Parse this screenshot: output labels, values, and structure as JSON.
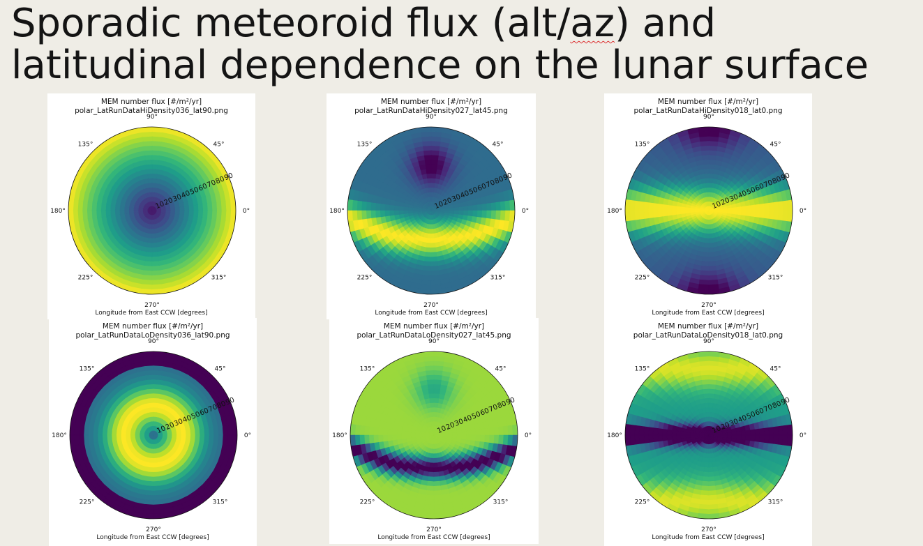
{
  "slide": {
    "title_pre": "Sporadic meteoroid flux (alt/",
    "title_squig": "az",
    "title_post": ") and latitudinal dependence on the lunar surface"
  },
  "chart_data": [
    {
      "type": "heatmap",
      "projection": "polar",
      "colormap": "viridis",
      "title": "MEM number flux [#/m²/yr]",
      "filename": "polar_LatRunDataHiDensity036_lat90.png",
      "xlabel": "Longitude from East CCW [degrees]",
      "angle_ticks": [
        "0°",
        "45°",
        "90°",
        "135°",
        "180°",
        "225°",
        "270°",
        "315°"
      ],
      "radial_ticks": [
        "10",
        "20",
        "30",
        "40",
        "50",
        "60",
        "70",
        "80",
        "90"
      ],
      "density": "Hi",
      "latitude": 90
    },
    {
      "type": "heatmap",
      "projection": "polar",
      "colormap": "viridis",
      "title": "MEM number flux [#/m²/yr]",
      "filename": "polar_LatRunDataHiDensity027_lat45.png",
      "xlabel": "Longitude from East CCW [degrees]",
      "angle_ticks": [
        "0°",
        "45°",
        "90°",
        "135°",
        "180°",
        "225°",
        "270°",
        "315°"
      ],
      "radial_ticks": [
        "10",
        "20",
        "30",
        "40",
        "50",
        "60",
        "70",
        "80",
        "90"
      ],
      "density": "Hi",
      "latitude": 45
    },
    {
      "type": "heatmap",
      "projection": "polar",
      "colormap": "viridis",
      "title": "MEM number flux [#/m²/yr]",
      "filename": "polar_LatRunDataHiDensity018_lat0.png",
      "xlabel": "Longitude from East CCW [degrees]",
      "angle_ticks": [
        "0°",
        "45°",
        "90°",
        "135°",
        "180°",
        "225°",
        "270°",
        "315°"
      ],
      "radial_ticks": [
        "10",
        "20",
        "30",
        "40",
        "50",
        "60",
        "70",
        "80",
        "90"
      ],
      "density": "Hi",
      "latitude": 0
    },
    {
      "type": "heatmap",
      "projection": "polar",
      "colormap": "viridis",
      "title": "MEM number flux [#/m²/yr]",
      "filename": "polar_LatRunDataLoDensity036_lat90.png",
      "xlabel": "Longitude from East CCW [degrees]",
      "angle_ticks": [
        "0°",
        "45°",
        "90°",
        "135°",
        "180°",
        "225°",
        "270°",
        "315°"
      ],
      "radial_ticks": [
        "10",
        "20",
        "30",
        "40",
        "50",
        "60",
        "70",
        "80",
        "90"
      ],
      "density": "Lo",
      "latitude": 90
    },
    {
      "type": "heatmap",
      "projection": "polar",
      "colormap": "viridis",
      "title": "MEM number flux [#/m²/yr]",
      "filename": "polar_LatRunDataLoDensity027_lat45.png",
      "xlabel": "Longitude from East CCW [degrees]",
      "angle_ticks": [
        "0°",
        "45°",
        "90°",
        "135°",
        "180°",
        "225°",
        "270°",
        "315°"
      ],
      "radial_ticks": [
        "10",
        "20",
        "30",
        "40",
        "50",
        "60",
        "70",
        "80",
        "90"
      ],
      "density": "Lo",
      "latitude": 45
    },
    {
      "type": "heatmap",
      "projection": "polar",
      "colormap": "viridis",
      "title": "MEM number flux [#/m²/yr]",
      "filename": "polar_LatRunDataLoDensity018_lat0.png",
      "xlabel": "Longitude from East CCW [degrees]",
      "angle_ticks": [
        "0°",
        "45°",
        "90°",
        "135°",
        "180°",
        "225°",
        "270°",
        "315°"
      ],
      "radial_ticks": [
        "10",
        "20",
        "30",
        "40",
        "50",
        "60",
        "70",
        "80",
        "90"
      ],
      "density": "Lo",
      "latitude": 0
    }
  ]
}
